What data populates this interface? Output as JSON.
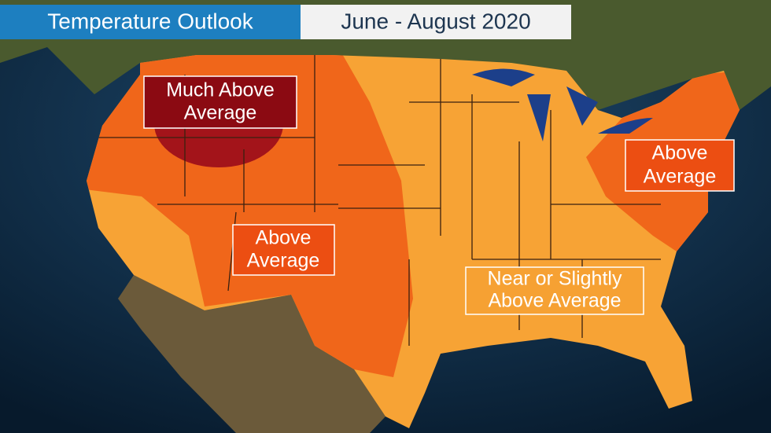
{
  "header": {
    "title": "Temperature Outlook",
    "subtitle": "June - August 2020"
  },
  "labels": [
    {
      "lines": [
        "Much Above",
        "Average"
      ]
    },
    {
      "lines": [
        "Above",
        "Average"
      ]
    },
    {
      "lines": [
        "Above",
        "Average"
      ]
    },
    {
      "lines": [
        "Near or Slightly",
        "Above Average"
      ]
    }
  ]
}
